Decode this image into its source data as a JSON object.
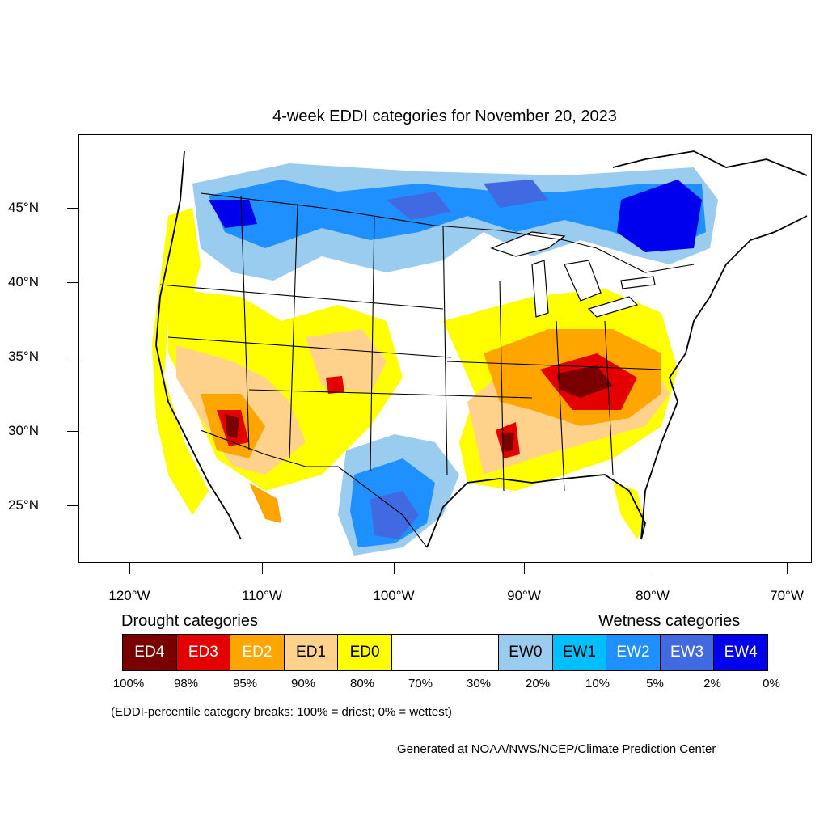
{
  "title": "4-week EDDI categories for November 20, 2023",
  "map": {
    "lat_ticks": [
      "45°N",
      "40°N",
      "35°N",
      "30°N",
      "25°N"
    ],
    "lon_ticks": [
      "120°W",
      "110°W",
      "100°W",
      "90°W",
      "80°W",
      "70°W"
    ],
    "colors": {
      "ED4": "#7a0000",
      "ED3": "#e50000",
      "ED2": "#ffa500",
      "ED1": "#ffd28c",
      "ED0": "#ffff00",
      "EW0": "#99ccee",
      "EW1": "#00bfff",
      "EW2": "#1e90ff",
      "EW3": "#4169e1",
      "EW4": "#0000ee"
    }
  },
  "legend": {
    "drought_label": "Drought categories",
    "wetness_label": "Wetness categories",
    "boxes": [
      {
        "label": "ED4",
        "color": "#7a0000",
        "text_color": "#ffffff"
      },
      {
        "label": "ED3",
        "color": "#e50000",
        "text_color": "#ffffff"
      },
      {
        "label": "ED2",
        "color": "#ffa500",
        "text_color": "#ffffff"
      },
      {
        "label": "ED1",
        "color": "#ffd28c",
        "text_color": "#000000"
      },
      {
        "label": "ED0",
        "color": "#ffff00",
        "text_color": "#000000"
      },
      {
        "label": "",
        "color": "#ffffff",
        "text_color": "#000000"
      },
      {
        "label": "EW0",
        "color": "#99ccee",
        "text_color": "#000000"
      },
      {
        "label": "EW1",
        "color": "#00bfff",
        "text_color": "#000000"
      },
      {
        "label": "EW2",
        "color": "#1e90ff",
        "text_color": "#ffffff"
      },
      {
        "label": "EW3",
        "color": "#4169e1",
        "text_color": "#ffffff"
      },
      {
        "label": "EW4",
        "color": "#0000ee",
        "text_color": "#ffffff"
      }
    ],
    "percent_breaks": [
      "100%",
      "98%",
      "95%",
      "90%",
      "80%",
      "70%",
      "30%",
      "20%",
      "10%",
      "5%",
      "2%",
      "0%"
    ]
  },
  "note": "(EDDI-percentile category breaks: 100% = driest; 0% = wettest)",
  "credit": "Generated at NOAA/NWS/NCEP/Climate Prediction Center"
}
